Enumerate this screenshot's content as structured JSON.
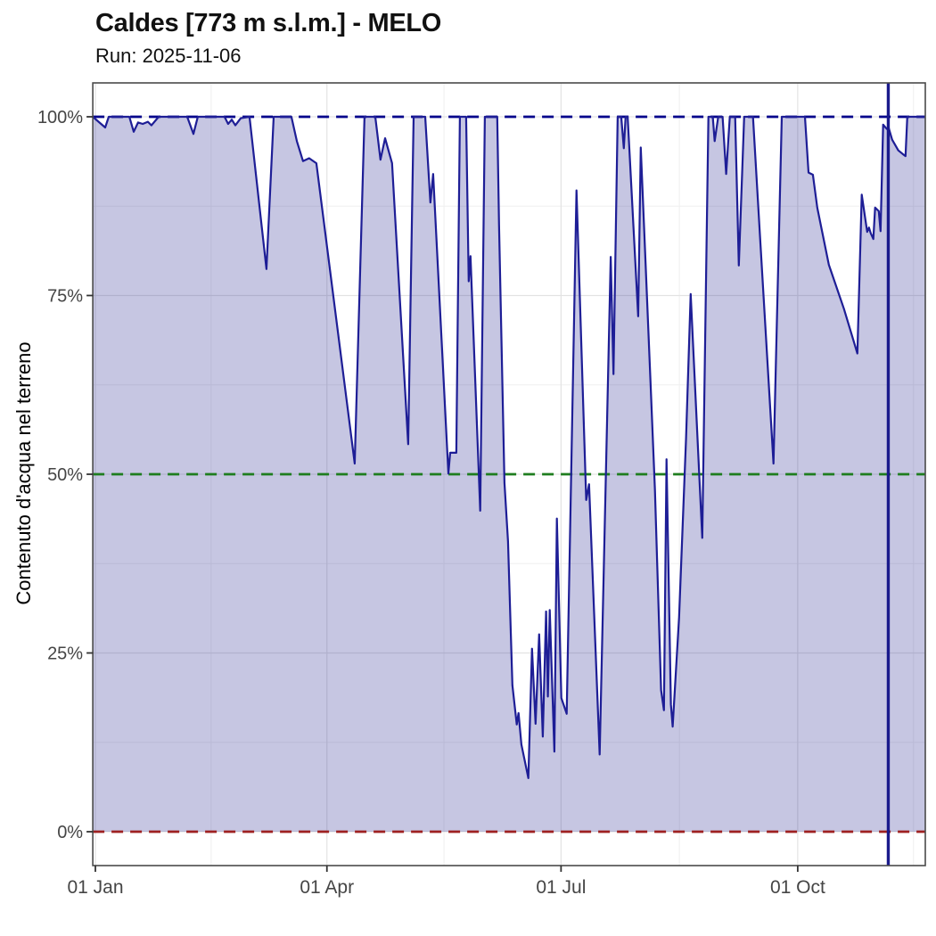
{
  "header": {
    "title": "Caldes [773 m s.l.m.] - MELO",
    "subtitle": "Run: 2025-11-06"
  },
  "chart_data": {
    "type": "area",
    "title": "Caldes [773 m s.l.m.] - MELO",
    "subtitle": "Run: 2025-11-06",
    "xlabel": "",
    "ylabel": "Contenuto d'acqua nel terreno",
    "legend_position": "none",
    "grid": {
      "major_color": "#e3e3e3",
      "minor_color": "#efefef",
      "shown": true
    },
    "x_axis": {
      "unit": "day_of_year_2025",
      "range_days": [
        -1,
        322.5
      ],
      "ticks": [
        {
          "d": 0,
          "label": "01 Jan"
        },
        {
          "d": 90,
          "label": "01 Apr"
        },
        {
          "d": 181,
          "label": "01 Jul"
        },
        {
          "d": 273,
          "label": "01 Oct"
        }
      ],
      "minor_tick_days": [
        45,
        135.5,
        227,
        318
      ]
    },
    "y_axis": {
      "unit": "percent",
      "range": [
        0,
        100
      ],
      "ticks": [
        {
          "v": 0,
          "label": "0%"
        },
        {
          "v": 25,
          "label": "25%"
        },
        {
          "v": 50,
          "label": "50%"
        },
        {
          "v": 75,
          "label": "75%"
        },
        {
          "v": 100,
          "label": "100%"
        }
      ],
      "minor_tick_values": [
        12.5,
        37.5,
        62.5,
        87.5
      ]
    },
    "reference_lines": [
      {
        "value": 100,
        "color": "#00008b",
        "style": "dashed",
        "name": "saturation-100pct"
      },
      {
        "value": 50,
        "color": "#1e7d1e",
        "style": "dashed",
        "name": "mid-50pct"
      },
      {
        "value": 0,
        "color": "#9e2121",
        "style": "dashed",
        "name": "wilting-0pct"
      }
    ],
    "run_date_marker": {
      "day": 308.2,
      "date": "2025-11-06",
      "color": "#1a1a8c",
      "style": "solid-vertical"
    },
    "series": [
      {
        "name": "contenuto-acqua-terreno",
        "color": "#1e1e96",
        "fill": "rgba(28,28,140,0.25)",
        "points": [
          [
            -1,
            100
          ],
          [
            3.8,
            98.5
          ],
          [
            5.2,
            100
          ],
          [
            13.2,
            100
          ],
          [
            14.9,
            97.9
          ],
          [
            16.6,
            99.2
          ],
          [
            18.4,
            99.0
          ],
          [
            20.4,
            99.3
          ],
          [
            21.8,
            98.8
          ],
          [
            24.6,
            100
          ],
          [
            35.7,
            100
          ],
          [
            38.1,
            97.6
          ],
          [
            39.8,
            100
          ],
          [
            50.2,
            100
          ],
          [
            51.6,
            99.0
          ],
          [
            53.0,
            99.6
          ],
          [
            54.4,
            98.8
          ],
          [
            56.5,
            99.8
          ],
          [
            59.9,
            100
          ],
          [
            66.5,
            78.7
          ],
          [
            69.3,
            100
          ],
          [
            76.2,
            100
          ],
          [
            78.3,
            96.6
          ],
          [
            80.7,
            93.8
          ],
          [
            83.1,
            94.2
          ],
          [
            85.9,
            93.5
          ],
          [
            100.8,
            51.5
          ],
          [
            104.6,
            100
          ],
          [
            108.8,
            100
          ],
          [
            110.8,
            94.0
          ],
          [
            112.6,
            97.0
          ],
          [
            115.3,
            93.5
          ],
          [
            121.6,
            54.2
          ],
          [
            123.7,
            100
          ],
          [
            128.2,
            100
          ],
          [
            130.2,
            88.0
          ],
          [
            131.3,
            92.0
          ],
          [
            137.2,
            50.1
          ],
          [
            137.9,
            53.0
          ],
          [
            140.3,
            53.0
          ],
          [
            141.7,
            100
          ],
          [
            144.1,
            100
          ],
          [
            145.1,
            77.0
          ],
          [
            145.8,
            80.5
          ],
          [
            149.6,
            44.9
          ],
          [
            151.4,
            100
          ],
          [
            156.2,
            100
          ],
          [
            156.9,
            85.0
          ],
          [
            159.0,
            48.8
          ],
          [
            160.4,
            40.6
          ],
          [
            162.1,
            20.5
          ],
          [
            163.8,
            15.0
          ],
          [
            164.5,
            16.6
          ],
          [
            165.6,
            12.2
          ],
          [
            168.3,
            7.5
          ],
          [
            169.7,
            25.6
          ],
          [
            171.1,
            15.1
          ],
          [
            172.5,
            27.6
          ],
          [
            173.9,
            13.3
          ],
          [
            175.2,
            30.8
          ],
          [
            175.9,
            18.9
          ],
          [
            176.6,
            31.0
          ],
          [
            178.4,
            11.2
          ],
          [
            179.4,
            43.8
          ],
          [
            181.1,
            18.7
          ],
          [
            183.2,
            16.5
          ],
          [
            187.0,
            89.7
          ],
          [
            190.8,
            46.4
          ],
          [
            191.9,
            48.6
          ],
          [
            196.0,
            10.8
          ],
          [
            200.3,
            80.4
          ],
          [
            201.4,
            64.0
          ],
          [
            203.0,
            100
          ],
          [
            204.4,
            100
          ],
          [
            205.4,
            95.6
          ],
          [
            206.1,
            100
          ],
          [
            206.9,
            100
          ],
          [
            211.0,
            72.1
          ],
          [
            212.0,
            95.7
          ],
          [
            215.8,
            62.7
          ],
          [
            217.5,
            47.8
          ],
          [
            219.9,
            19.8
          ],
          [
            221.0,
            17.0
          ],
          [
            222.0,
            52.1
          ],
          [
            223.7,
            17.8
          ],
          [
            224.4,
            14.7
          ],
          [
            226.9,
            30.0
          ],
          [
            229.6,
            55.0
          ],
          [
            231.4,
            75.2
          ],
          [
            234.8,
            49.4
          ],
          [
            235.9,
            41.1
          ],
          [
            238.3,
            100
          ],
          [
            240.0,
            100
          ],
          [
            240.7,
            96.6
          ],
          [
            242.1,
            100
          ],
          [
            243.8,
            100
          ],
          [
            245.2,
            92.0
          ],
          [
            246.6,
            100
          ],
          [
            248.7,
            100
          ],
          [
            250.1,
            79.2
          ],
          [
            252.2,
            100
          ],
          [
            255.6,
            100
          ],
          [
            258.4,
            83.0
          ],
          [
            263.6,
            51.5
          ],
          [
            266.8,
            100
          ],
          [
            275.8,
            100
          ],
          [
            277.2,
            92.2
          ],
          [
            278.9,
            91.9
          ],
          [
            280.6,
            87.3
          ],
          [
            285.1,
            79.3
          ],
          [
            291.0,
            73.1
          ],
          [
            296.2,
            66.9
          ],
          [
            297.9,
            89.1
          ],
          [
            300.0,
            83.9
          ],
          [
            300.7,
            84.5
          ],
          [
            301.4,
            83.7
          ],
          [
            302.4,
            82.9
          ],
          [
            303.1,
            87.3
          ],
          [
            304.5,
            86.8
          ],
          [
            305.2,
            84.0
          ],
          [
            306.2,
            98.9
          ],
          [
            307.6,
            98.3
          ],
          [
            308.3,
            98.5
          ],
          [
            309.7,
            96.8
          ],
          [
            312.1,
            95.3
          ],
          [
            313.8,
            94.8
          ],
          [
            314.9,
            94.5
          ],
          [
            315.6,
            100
          ],
          [
            322.5,
            100
          ]
        ]
      }
    ],
    "panel": {
      "border_color": "#4a4a4a",
      "background": "#ffffff"
    }
  }
}
